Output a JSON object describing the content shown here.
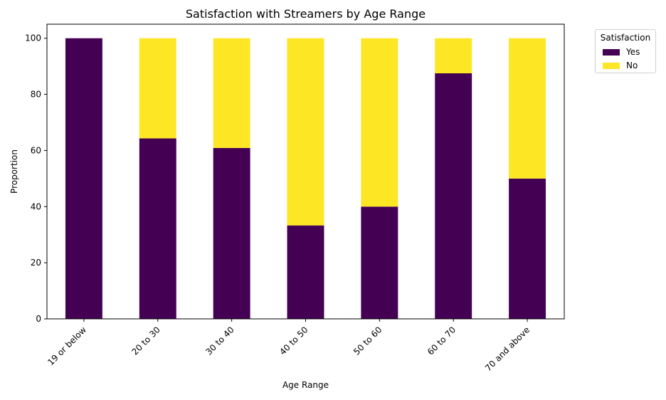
{
  "chart_data": {
    "type": "bar",
    "stacked": true,
    "title": "Satisfaction with Streamers by Age Range",
    "xlabel": "Age Range",
    "ylabel": "Proportion",
    "ylim": [
      0,
      105
    ],
    "yticks": [
      0,
      20,
      40,
      60,
      80,
      100
    ],
    "categories": [
      "19 or below",
      "20 to 30",
      "30 to 40",
      "40 to 50",
      "50 to 60",
      "60 to 70",
      "70 and above"
    ],
    "series": [
      {
        "name": "Yes",
        "color": "#440154",
        "values": [
          100,
          64.3,
          60.9,
          33.3,
          40.0,
          87.5,
          50.0
        ]
      },
      {
        "name": "No",
        "color": "#fde725",
        "values": [
          0,
          35.7,
          39.1,
          66.7,
          60.0,
          12.5,
          50.0
        ]
      }
    ],
    "legend": {
      "title": "Satisfaction",
      "position": "outside-top-right"
    }
  }
}
